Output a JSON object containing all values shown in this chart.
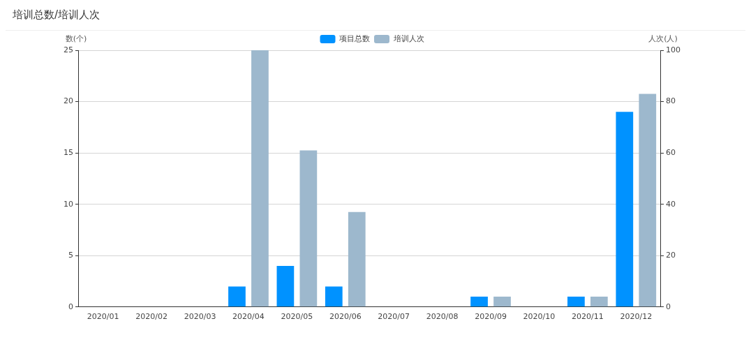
{
  "chart_data": {
    "type": "bar",
    "title": "培训总数/培训人次",
    "ylabel": "数(个)",
    "y2label": "人次(人)",
    "categories": [
      "2020/01",
      "2020/02",
      "2020/03",
      "2020/04",
      "2020/05",
      "2020/06",
      "2020/07",
      "2020/08",
      "2020/09",
      "2020/10",
      "2020/11",
      "2020/12"
    ],
    "series": [
      {
        "name": "项目总数",
        "color": "#0092ff",
        "values": [
          0,
          0,
          0,
          2,
          4,
          2,
          0,
          0,
          1,
          0,
          1,
          19
        ]
      },
      {
        "name": "培训人次",
        "color": "#9db8cd",
        "axis": "y2",
        "values": [
          0,
          0,
          0,
          100,
          61,
          37,
          0,
          0,
          4,
          0,
          4,
          83
        ]
      }
    ],
    "ylim": [
      0,
      25
    ],
    "yticks": [
      0,
      5,
      10,
      15,
      20,
      25
    ],
    "y2lim": [
      0,
      100
    ],
    "y2ticks": [
      0,
      20,
      40,
      60,
      80,
      100
    ],
    "grid": "y",
    "legend": "top"
  }
}
